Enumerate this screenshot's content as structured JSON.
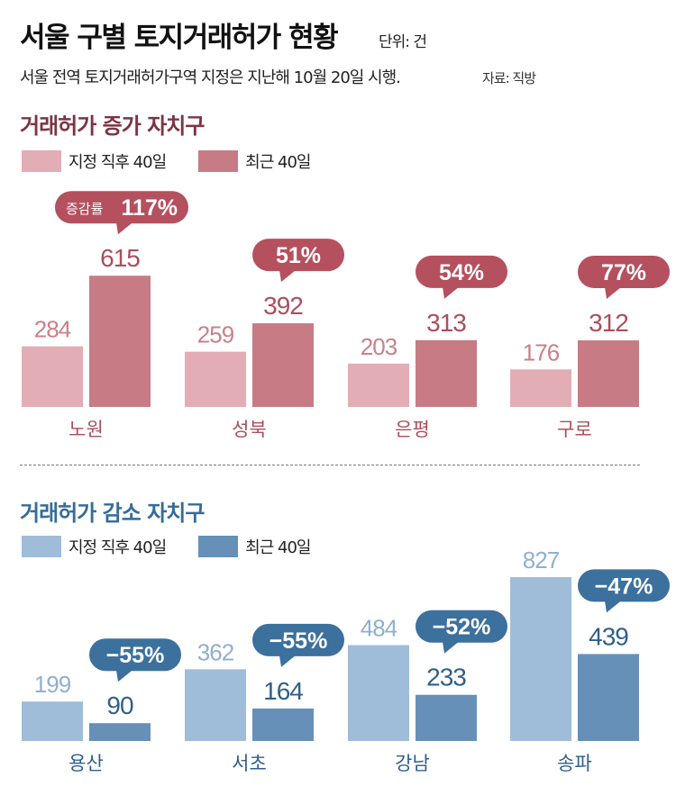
{
  "title": "서울 구별 토지거래허가 현황",
  "unit": "단위: 건",
  "subtitle": "서울 전역 토지거래허가구역 지정은 지난해 10월 20일 시행.",
  "source": "자료: 직방",
  "colors": {
    "inc_light": "#e2adb5",
    "inc_dark": "#c67b85",
    "inc_bubble": "#b5505f",
    "inc_heading": "#7c3445",
    "inc_text_light": "#c9808b",
    "inc_text_dark": "#a8505e",
    "dec_light": "#9fbcd9",
    "dec_dark": "#6690b8",
    "dec_bubble": "#3c709d",
    "dec_heading": "#356c98",
    "dec_text_light": "#8fb0d0",
    "dec_text_dark": "#2f5f8a"
  },
  "chart_data": [
    {
      "type": "bar",
      "title": "거래허가 증가 자치구",
      "categories": [
        "노원",
        "성북",
        "은평",
        "구로"
      ],
      "series": [
        {
          "name": "지정 직후 40일",
          "values": [
            284,
            259,
            203,
            176
          ]
        },
        {
          "name": "최근 40일",
          "values": [
            615,
            392,
            313,
            312
          ]
        }
      ],
      "change_labels": [
        "117%",
        "51%",
        "54%",
        "77%"
      ],
      "change_prefix": "증감률",
      "legend": "top-left",
      "grid": false
    },
    {
      "type": "bar",
      "title": "거래허가 감소 자치구",
      "categories": [
        "용산",
        "서초",
        "강남",
        "송파"
      ],
      "series": [
        {
          "name": "지정 직후 40일",
          "values": [
            199,
            362,
            484,
            827
          ]
        },
        {
          "name": "최근 40일",
          "values": [
            90,
            164,
            233,
            439
          ]
        }
      ],
      "change_labels": [
        "−55%",
        "−55%",
        "−52%",
        "−47%"
      ],
      "legend": "top-left",
      "grid": false
    }
  ]
}
